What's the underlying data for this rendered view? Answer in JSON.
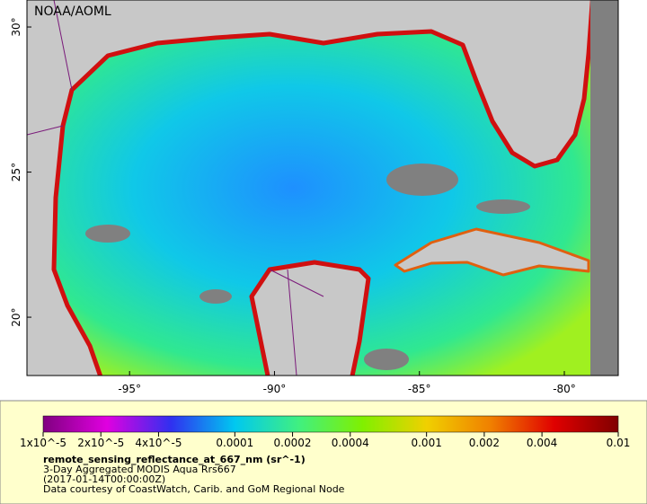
{
  "map": {
    "credit": "NOAA/AOML",
    "lon_range": [
      -98.54,
      -78.14
    ],
    "lat_range": [
      17.99,
      30.93
    ],
    "lon_ticks": [
      {
        "value": -95,
        "label": "-95°"
      },
      {
        "value": -90,
        "label": "-90°"
      },
      {
        "value": -85,
        "label": "-85°"
      },
      {
        "value": -80,
        "label": "-80°"
      }
    ],
    "lat_ticks": [
      {
        "value": 20,
        "label": "20°"
      },
      {
        "value": 25,
        "label": "25°"
      },
      {
        "value": 30,
        "label": "30°"
      }
    ]
  },
  "colorbar": {
    "scale": "log",
    "range": [
      1e-05,
      0.01
    ],
    "colors": [
      "#800080",
      "#e000e0",
      "#3030f0",
      "#00c8f0",
      "#40f080",
      "#80f000",
      "#f0d000",
      "#f08000",
      "#e00000",
      "#800000"
    ],
    "ticks": [
      {
        "value": 1e-05,
        "label": "1x10^-5"
      },
      {
        "value": 2e-05,
        "label": "2x10^-5"
      },
      {
        "value": 4e-05,
        "label": "4x10^-5"
      },
      0.0001,
      0.0002,
      0.0004,
      0.001,
      0.002,
      0.004,
      0.01
    ]
  },
  "caption": {
    "variable": "remote_sensing_reflectance_at_667_nm (sr^-1)",
    "product": "3-Day Aggregated MODIS Aqua Rrs667",
    "time": "(2017-01-14T00:00:00Z)",
    "source": "Data courtesy of CoastWatch, Carib. and GoM Regional Node"
  }
}
